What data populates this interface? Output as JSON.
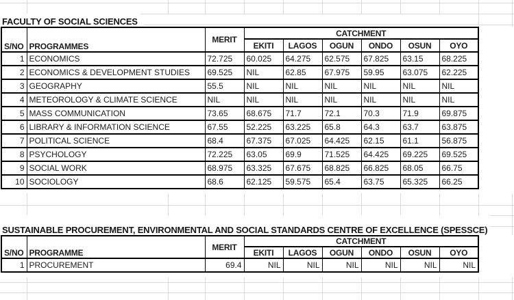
{
  "colors": {
    "grid": "#d9d9d9",
    "table_border": "#000000",
    "text": "#1c1c1c",
    "background": "#ffffff"
  },
  "tables": [
    {
      "title": "FACULTY OF SOCIAL SCIENCES",
      "headers": {
        "sno": "S/NO",
        "programme": "PROGRAMMES",
        "merit": "MERIT",
        "catchment": "CATCHMENT",
        "states": [
          "EKITI",
          "LAGOS",
          "OGUN",
          "ONDO",
          "OSUN",
          "OYO"
        ]
      },
      "value_alignment": "left",
      "rows": [
        {
          "sno": "1",
          "programme": "ECONOMICS",
          "merit": "72.725",
          "values": [
            "60.025",
            "64.275",
            "62.575",
            "67.825",
            "63.15",
            "68.225"
          ]
        },
        {
          "sno": "2",
          "programme": "ECONOMICS & DEVELOPMENT STUDIES",
          "merit": "69.525",
          "values": [
            "NIL",
            "62.85",
            "67.975",
            "59.95",
            "63.075",
            "62.225"
          ]
        },
        {
          "sno": "3",
          "programme": "GEOGRAPHY",
          "merit": "55.5",
          "values": [
            "NIL",
            "NIL",
            "NIL",
            "NIL",
            "NIL",
            "NIL"
          ]
        },
        {
          "sno": "4",
          "programme": "METEOROLOGY & CLIMATE SCIENCE",
          "merit": "NIL",
          "values": [
            "NIL",
            "NIL",
            "NIL",
            "NIL",
            "NIL",
            "NIL"
          ]
        },
        {
          "sno": "5",
          "programme": "MASS COMMUNICATION",
          "merit": "73.65",
          "values": [
            "68.675",
            "71.7",
            "72.1",
            "70.3",
            "71.9",
            "69.875"
          ]
        },
        {
          "sno": "6",
          "programme": "LIBRARY & INFORMATION SCIENCE",
          "merit": "67.55",
          "values": [
            "52.225",
            "63.225",
            "65.8",
            "64.3",
            "63.7",
            "63.875"
          ]
        },
        {
          "sno": "7",
          "programme": "POLITICAL SCIENCE",
          "merit": "68.4",
          "values": [
            "67.375",
            "67.025",
            "64.425",
            "62.15",
            "61.1",
            "56.875"
          ]
        },
        {
          "sno": "8",
          "programme": "PSYCHOLOGY",
          "merit": "72.225",
          "values": [
            "63.05",
            "69.9",
            "71.525",
            "64.425",
            "69.225",
            "69.525"
          ]
        },
        {
          "sno": "9",
          "programme": "SOCIAL WORK",
          "merit": "68.975",
          "values": [
            "63.325",
            "67.675",
            "68.825",
            "66.825",
            "68.05",
            "66.75"
          ]
        },
        {
          "sno": "10",
          "programme": "SOCIOLOGY",
          "merit": "68.6",
          "values": [
            "62.125",
            "59.575",
            "65.4",
            "63.75",
            "65.325",
            "66.25"
          ]
        }
      ]
    },
    {
      "title": "SUSTAINABLE PROCUREMENT, ENVIRONMENTAL AND SOCIAL STANDARDS CENTRE OF EXCELLENCE (SPESSCE)",
      "headers": {
        "sno": "S/NO",
        "programme": "PROGRAMME",
        "merit": "MERIT",
        "catchment": "CATCHMENT",
        "states": [
          "EKITI",
          "LAGOS",
          "OGUN",
          "ONDO",
          "OSUN",
          "OYO"
        ]
      },
      "value_alignment": "right",
      "rows": [
        {
          "sno": "1",
          "programme": "PROCUREMENT",
          "merit": "69.4",
          "values": [
            "NIL",
            "NIL",
            "NIL",
            "NIL",
            "NIL",
            "NIL"
          ]
        }
      ]
    }
  ]
}
